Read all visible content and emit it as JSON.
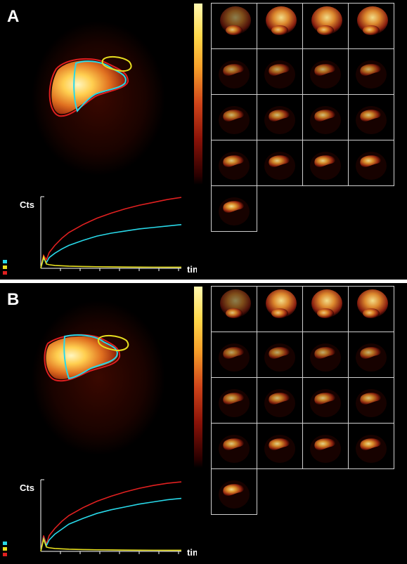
{
  "colors": {
    "cyan_roi": "#28d8e8",
    "yellow_roi": "#e8e020",
    "red_roi": "#e02020"
  },
  "panels": [
    {
      "label": "A",
      "frame_rows": [
        4,
        4,
        4,
        4,
        1
      ],
      "chart_data": {
        "type": "line",
        "ylabel": "Cts",
        "xlabel": "time (min)",
        "x": [
          0,
          0.2,
          0.4,
          0.6,
          1,
          1.5,
          2,
          3,
          4,
          5,
          6,
          7,
          8,
          9,
          10
        ],
        "series": [
          {
            "color": "#e02020",
            "values": [
              0.0,
              0.18,
              0.12,
              0.22,
              0.32,
              0.42,
              0.5,
              0.61,
              0.7,
              0.77,
              0.83,
              0.88,
              0.92,
              0.96,
              0.99
            ]
          },
          {
            "color": "#28d8e8",
            "values": [
              0.0,
              0.14,
              0.08,
              0.15,
              0.21,
              0.27,
              0.32,
              0.39,
              0.45,
              0.49,
              0.52,
              0.55,
              0.57,
              0.59,
              0.61
            ]
          },
          {
            "color": "#e8e020",
            "values": [
              0.0,
              0.16,
              0.06,
              0.05,
              0.04,
              0.035,
              0.03,
              0.025,
              0.022,
              0.02,
              0.018,
              0.017,
              0.016,
              0.015,
              0.015
            ]
          }
        ]
      }
    },
    {
      "label": "B",
      "frame_rows": [
        4,
        4,
        4,
        4,
        1
      ],
      "chart_data": {
        "type": "line",
        "ylabel": "Cts",
        "xlabel": "time (min)",
        "x": [
          0,
          0.2,
          0.4,
          0.6,
          1,
          1.5,
          2,
          3,
          4,
          5,
          6,
          7,
          8,
          9,
          10
        ],
        "series": [
          {
            "color": "#e02020",
            "values": [
              0.0,
              0.22,
              0.1,
              0.22,
              0.32,
              0.42,
              0.5,
              0.61,
              0.7,
              0.77,
              0.83,
              0.88,
              0.92,
              0.95,
              0.97
            ]
          },
          {
            "color": "#28d8e8",
            "values": [
              0.0,
              0.18,
              0.08,
              0.16,
              0.24,
              0.31,
              0.38,
              0.46,
              0.53,
              0.58,
              0.62,
              0.66,
              0.69,
              0.72,
              0.74
            ]
          },
          {
            "color": "#e8e020",
            "values": [
              0.0,
              0.17,
              0.06,
              0.05,
              0.04,
              0.035,
              0.03,
              0.025,
              0.022,
              0.02,
              0.018,
              0.017,
              0.016,
              0.015,
              0.015
            ]
          }
        ]
      }
    }
  ]
}
